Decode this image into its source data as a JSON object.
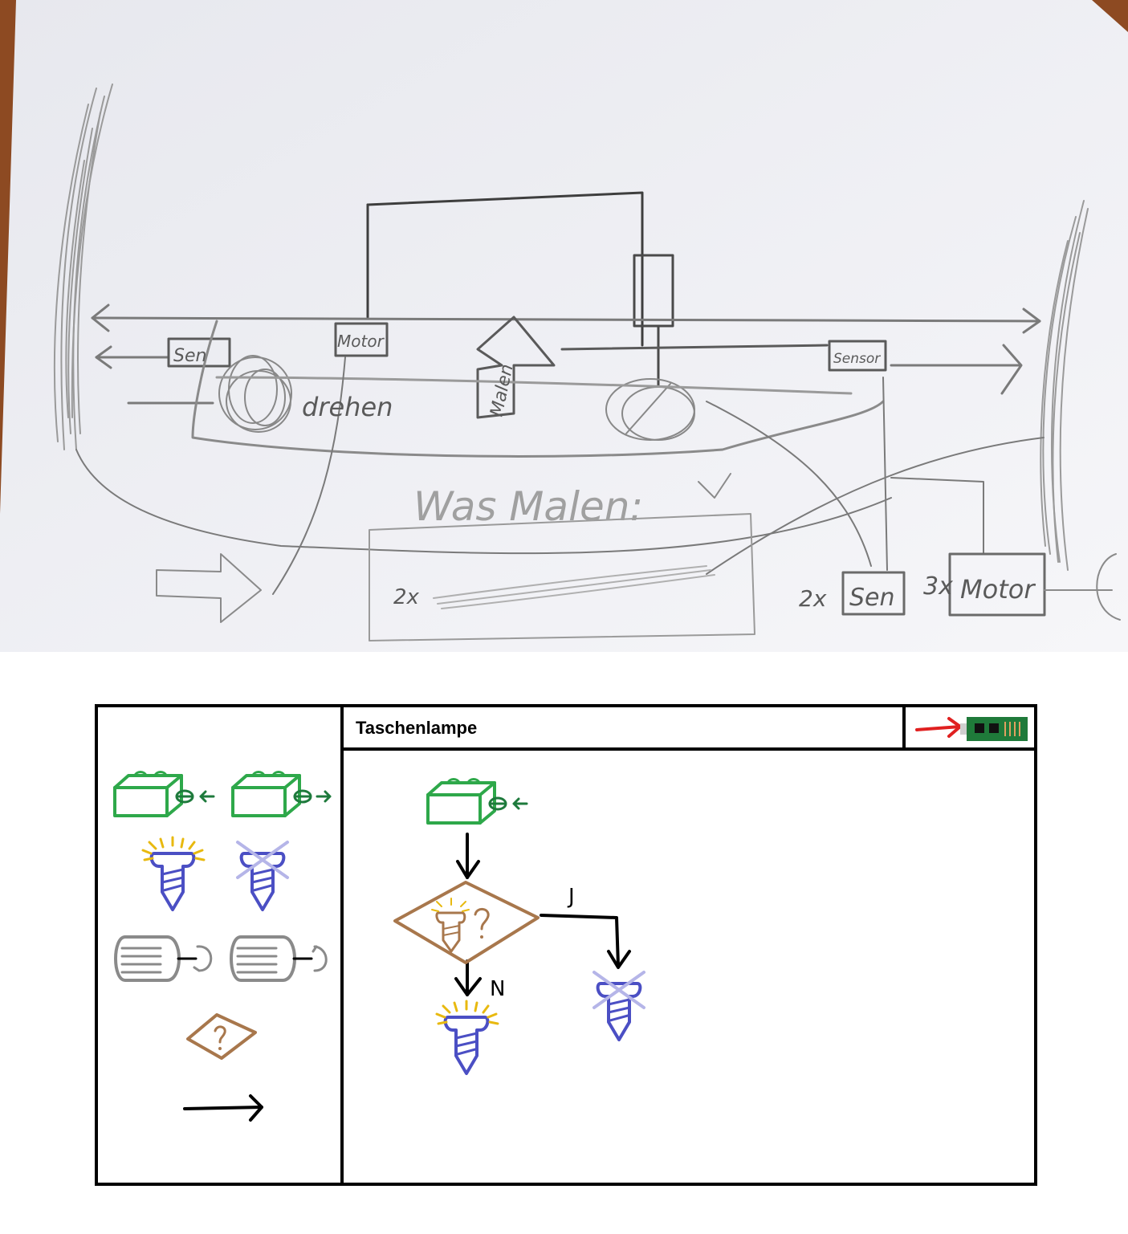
{
  "sketch": {
    "labels": {
      "sensor_left": "Sen",
      "motor_top": "Motor",
      "drehen": "drehen",
      "malen": "Malen",
      "sensor_right": "Sensor",
      "was_malen": "Was Malen:",
      "two_x_a": "2x",
      "two_x_b": "2x",
      "sensor_bottom": "Sen",
      "three_x": "3x",
      "motor_bottom": "Motor"
    }
  },
  "mockup": {
    "title": "Taschenlampe",
    "flow": {
      "yes_label": "J",
      "no_label": "N"
    },
    "colors": {
      "block_green": "#2ea84a",
      "sensor_arrow": "#1e7a3c",
      "lamp_blue": "#4b4fc4",
      "light_ray": "#e8b90f",
      "off_cross": "#b5b5e8",
      "motor_gray": "#8a8a8a",
      "decision_brown": "#a8774c",
      "upload_red": "#e02020",
      "board_green": "#1f7a3a"
    },
    "palette": {
      "icons": [
        "button-in-icon",
        "button-out-icon",
        "lamp-on-icon",
        "lamp-off-icon",
        "motor-forward-icon",
        "motor-backward-icon",
        "decision-icon",
        "arrow-connector-icon"
      ]
    }
  }
}
